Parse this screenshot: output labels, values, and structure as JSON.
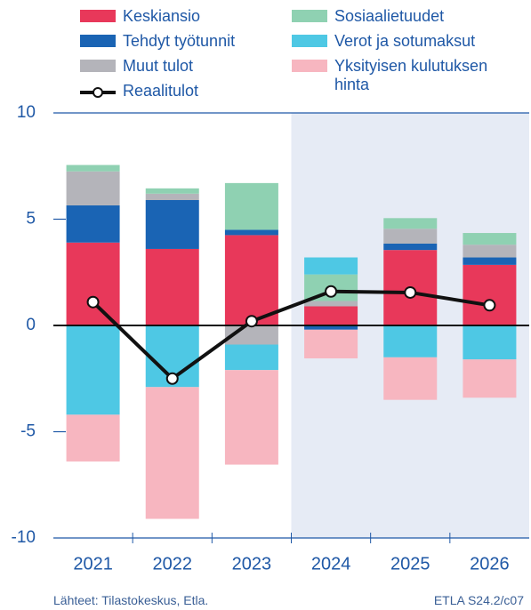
{
  "chart_data": {
    "type": "stacked_bar_line",
    "categories": [
      "2021",
      "2022",
      "2023",
      "2024",
      "2025",
      "2026"
    ],
    "series": [
      {
        "name": "Keskiansio",
        "color": "#e8385a",
        "values": [
          3.9,
          3.6,
          4.25,
          0.9,
          3.55,
          2.85
        ]
      },
      {
        "name": "Tehdyt työtunnit",
        "color": "#1a64b4",
        "values": [
          1.75,
          2.3,
          0.25,
          -0.2,
          0.3,
          0.35
        ]
      },
      {
        "name": "Muut tulot",
        "color": "#b4b4ba",
        "values": [
          1.6,
          0.3,
          -0.9,
          0.25,
          0.7,
          0.6
        ]
      },
      {
        "name": "Sosiaalietuudet",
        "color": "#8fd1b2",
        "values": [
          0.3,
          0.25,
          2.2,
          1.25,
          0.5,
          0.55
        ]
      },
      {
        "name": "Verot ja sotumaksut",
        "color": "#4ec8e4",
        "values": [
          -4.2,
          -2.9,
          -1.2,
          0.8,
          -1.5,
          -1.6
        ]
      },
      {
        "name": "Yksityisen kulutuksen hinta",
        "color": "#f7b6c0",
        "values": [
          -2.2,
          -6.2,
          -4.45,
          -1.35,
          -2.0,
          -1.8
        ]
      }
    ],
    "line": {
      "name": "Reaalitulot",
      "color": "#111111",
      "values": [
        1.1,
        -2.5,
        0.2,
        1.6,
        1.55,
        0.95
      ]
    },
    "ylim": [
      -10,
      10
    ],
    "yticks": [
      -10,
      -5,
      0,
      5,
      10
    ],
    "source": "Lähteet: Tilastokeskus, Etla.",
    "note": "ETLA S24.2/c07"
  }
}
